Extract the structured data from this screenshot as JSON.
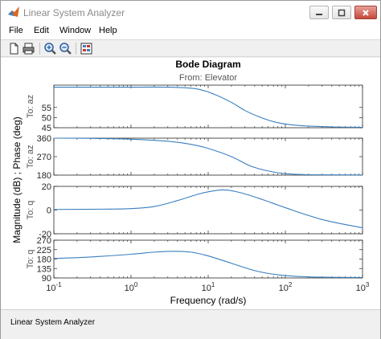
{
  "window": {
    "title": "Linear System Analyzer"
  },
  "menu": {
    "items": [
      "File",
      "Edit",
      "Window",
      "Help"
    ]
  },
  "toolbar": {
    "icons": [
      "new-icon",
      "print-icon",
      "zoom-in-icon",
      "zoom-out-icon",
      "plot-config-icon"
    ]
  },
  "status": {
    "text": "Linear System Analyzer"
  },
  "chart_data": {
    "type": "line",
    "title": "Bode Diagram",
    "subtitle": "From: Elevator",
    "xlabel": "Frequency  (rad/s)",
    "ylabel": "Magnitude (dB) ; Phase (deg)",
    "xscale": "log",
    "xlim": [
      0.1,
      1000
    ],
    "x_ticks": [
      {
        "base": "10",
        "exp": "-1"
      },
      {
        "base": "10",
        "exp": "0"
      },
      {
        "base": "10",
        "exp": "1"
      },
      {
        "base": "10",
        "exp": "2"
      },
      {
        "base": "10",
        "exp": "3"
      }
    ],
    "grid": false,
    "line_color": "#3a7fbf",
    "panels": [
      {
        "row_label": "To: az",
        "kind": "magnitude",
        "ylim": [
          45,
          66
        ],
        "yticks": [
          "45",
          "50",
          "55"
        ],
        "points": [
          [
            0.1,
            65
          ],
          [
            1,
            65
          ],
          [
            3,
            65
          ],
          [
            7,
            64.2
          ],
          [
            12,
            61.5
          ],
          [
            20,
            57.5
          ],
          [
            30,
            53.5
          ],
          [
            45,
            50.5
          ],
          [
            70,
            48
          ],
          [
            110,
            46.6
          ],
          [
            200,
            45.8
          ],
          [
            400,
            45.4
          ],
          [
            1000,
            45.2
          ]
        ]
      },
      {
        "row_label": "To: az",
        "kind": "phase",
        "ylim": [
          180,
          360
        ],
        "yticks": [
          "180",
          "270",
          "360"
        ],
        "points": [
          [
            0.1,
            360
          ],
          [
            0.3,
            359
          ],
          [
            1,
            355
          ],
          [
            3,
            345
          ],
          [
            6,
            330
          ],
          [
            10,
            310
          ],
          [
            20,
            270
          ],
          [
            35,
            225
          ],
          [
            60,
            200
          ],
          [
            100,
            187
          ],
          [
            200,
            182
          ],
          [
            1000,
            181
          ]
        ]
      },
      {
        "row_label": "To: q",
        "kind": "magnitude",
        "ylim": [
          -20,
          20
        ],
        "yticks": [
          "-20",
          "0",
          "20"
        ],
        "points": [
          [
            0.1,
            0.5
          ],
          [
            0.5,
            0.8
          ],
          [
            1,
            1.2
          ],
          [
            2,
            3
          ],
          [
            4,
            8
          ],
          [
            8,
            14
          ],
          [
            15,
            17
          ],
          [
            25,
            15
          ],
          [
            50,
            9
          ],
          [
            100,
            2
          ],
          [
            300,
            -8
          ],
          [
            1000,
            -15
          ]
        ]
      },
      {
        "row_label": "To: q",
        "kind": "phase",
        "ylim": [
          90,
          270
        ],
        "yticks": [
          "90",
          "135",
          "180",
          "225",
          "270"
        ],
        "points": [
          [
            0.1,
            183
          ],
          [
            0.3,
            190
          ],
          [
            1,
            203
          ],
          [
            2,
            213
          ],
          [
            3.5,
            217
          ],
          [
            6,
            213
          ],
          [
            10,
            195
          ],
          [
            20,
            160
          ],
          [
            40,
            125
          ],
          [
            80,
            105
          ],
          [
            200,
            95
          ],
          [
            1000,
            92
          ]
        ]
      }
    ]
  }
}
